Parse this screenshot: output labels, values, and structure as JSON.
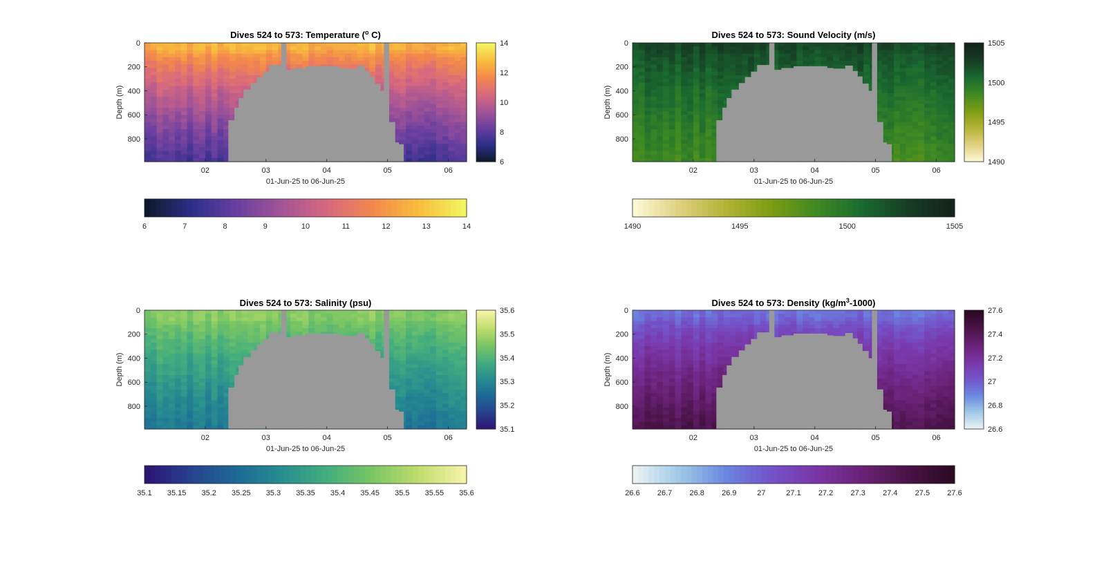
{
  "chart_data": [
    {
      "type": "heatmap",
      "title": "Dives 524 to 573: Temperature (",
      "title_super": "o",
      "title_tail": " C)",
      "xlabel": "01-Jun-25 to 06-Jun-25",
      "ylabel": "Depth (m)",
      "xticks": [
        "02",
        "03",
        "04",
        "05",
        "06"
      ],
      "yticks": [
        "0",
        "200",
        "400",
        "600",
        "800"
      ],
      "xlim": [
        1.0,
        6.3
      ],
      "ylim": [
        0,
        990
      ],
      "colormap": [
        "#0d1a2e",
        "#2e2f8a",
        "#6a3fa0",
        "#a55596",
        "#d8697e",
        "#f3884c",
        "#f8bd3c",
        "#f3f462"
      ],
      "clim": [
        6,
        14
      ],
      "colorbar_ticks_right": [
        "6",
        "8",
        "10",
        "12",
        "14"
      ],
      "colorbar_ticks_bottom": [
        "6",
        "7",
        "8",
        "9",
        "10",
        "11",
        "12",
        "13",
        "14"
      ],
      "profile": {
        "surface": 12.6,
        "mix_depth": 60,
        "deep": 7.6
      },
      "no_data_color": "#999999",
      "no_data_note": "gray region shows seafloor / no data"
    },
    {
      "type": "heatmap",
      "title": "Dives 524 to 573: Sound Velocity (m/s)",
      "xlabel": "01-Jun-25 to 06-Jun-25",
      "ylabel": "Depth (m)",
      "xticks": [
        "02",
        "03",
        "04",
        "05",
        "06"
      ],
      "yticks": [
        "0",
        "200",
        "400",
        "600",
        "800"
      ],
      "xlim": [
        1.0,
        6.3
      ],
      "ylim": [
        0,
        990
      ],
      "colormap": [
        "#fcf7d4",
        "#e0cf7e",
        "#b3b335",
        "#7c9d12",
        "#3f8a22",
        "#1a6b30",
        "#163e24",
        "#14231a"
      ],
      "clim": [
        1490,
        1505
      ],
      "colorbar_ticks_right": [
        "1490",
        "1495",
        "1500",
        "1505"
      ],
      "colorbar_ticks_bottom": [
        "1490",
        "1495",
        "1500",
        "1505"
      ],
      "profile": {
        "surface": 1502.6,
        "mix_depth": 40,
        "deep": 1498.6
      },
      "no_data_color": "#999999"
    },
    {
      "type": "heatmap",
      "title": "Dives 524 to 573: Salinity (psu)",
      "xlabel": "01-Jun-25 to 06-Jun-25",
      "ylabel": "Depth (m)",
      "xticks": [
        "02",
        "03",
        "04",
        "05",
        "06"
      ],
      "yticks": [
        "0",
        "200",
        "400",
        "600",
        "800"
      ],
      "xlim": [
        1.0,
        6.3
      ],
      "ylim": [
        0,
        990
      ],
      "colormap": [
        "#2b1673",
        "#27438f",
        "#1d6a96",
        "#278e8f",
        "#45ae7d",
        "#7bc663",
        "#c0dd6e",
        "#f6f2a8"
      ],
      "clim": [
        35.1,
        35.6
      ],
      "colorbar_ticks_right": [
        "35.1",
        "35.2",
        "35.3",
        "35.4",
        "35.5",
        "35.6"
      ],
      "colorbar_ticks_bottom": [
        "35.1",
        "35.15",
        "35.2",
        "35.25",
        "35.3",
        "35.35",
        "35.4",
        "35.45",
        "35.5",
        "35.55",
        "35.6"
      ],
      "profile": {
        "surface": 35.47,
        "mix_depth": 80,
        "deep": 35.27
      },
      "no_data_color": "#999999"
    },
    {
      "type": "heatmap",
      "title": "Dives 524 to 573: Density (kg/m",
      "title_super": "3",
      "title_tail": "-1000)",
      "xlabel": "01-Jun-25 to 06-Jun-25",
      "ylabel": "Depth (m)",
      "xticks": [
        "02",
        "03",
        "04",
        "05",
        "06"
      ],
      "yticks": [
        "0",
        "200",
        "400",
        "600",
        "800"
      ],
      "xlim": [
        1.0,
        6.3
      ],
      "ylim": [
        0,
        990
      ],
      "colormap": [
        "#e8f2f3",
        "#9ec8e6",
        "#6a86e0",
        "#7452c9",
        "#7a36a6",
        "#6a2277",
        "#4a1347",
        "#2b0a23"
      ],
      "clim": [
        26.6,
        27.6
      ],
      "colorbar_ticks_right": [
        "26.6",
        "26.8",
        "27",
        "27.2",
        "27.4",
        "27.6"
      ],
      "colorbar_ticks_bottom": [
        "26.6",
        "26.7",
        "26.8",
        "26.9",
        "27",
        "27.1",
        "27.2",
        "27.3",
        "27.4",
        "27.5",
        "27.6"
      ],
      "profile": {
        "surface": 26.95,
        "mix_depth": 60,
        "deep": 27.45
      },
      "no_data_color": "#999999"
    }
  ],
  "shared": {
    "no_data_columns": [
      {
        "x0": 1.0,
        "x1": 2.38,
        "floor": 990
      },
      {
        "x0": 2.38,
        "x1": 2.48,
        "floor": 645
      },
      {
        "x0": 2.48,
        "x1": 2.55,
        "floor": 540
      },
      {
        "x0": 2.55,
        "x1": 2.63,
        "floor": 460
      },
      {
        "x0": 2.63,
        "x1": 2.75,
        "floor": 390
      },
      {
        "x0": 2.75,
        "x1": 2.85,
        "floor": 335
      },
      {
        "x0": 2.85,
        "x1": 2.95,
        "floor": 285
      },
      {
        "x0": 2.95,
        "x1": 3.05,
        "floor": 240
      },
      {
        "x0": 3.05,
        "x1": 3.25,
        "floor": 185
      },
      {
        "x0": 3.25,
        "x1": 3.33,
        "floor": 0
      },
      {
        "x0": 3.33,
        "x1": 3.45,
        "floor": 225
      },
      {
        "x0": 3.45,
        "x1": 3.65,
        "floor": 210
      },
      {
        "x0": 3.65,
        "x1": 4.2,
        "floor": 195
      },
      {
        "x0": 4.2,
        "x1": 4.3,
        "floor": 210
      },
      {
        "x0": 4.3,
        "x1": 4.5,
        "floor": 215
      },
      {
        "x0": 4.5,
        "x1": 4.62,
        "floor": 190
      },
      {
        "x0": 4.62,
        "x1": 4.7,
        "floor": 235
      },
      {
        "x0": 4.7,
        "x1": 4.78,
        "floor": 280
      },
      {
        "x0": 4.78,
        "x1": 4.88,
        "floor": 340
      },
      {
        "x0": 4.88,
        "x1": 4.94,
        "floor": 400
      },
      {
        "x0": 4.94,
        "x1": 5.02,
        "floor": 0
      },
      {
        "x0": 5.02,
        "x1": 5.12,
        "floor": 660
      },
      {
        "x0": 5.12,
        "x1": 5.18,
        "floor": 830
      },
      {
        "x0": 5.18,
        "x1": 5.26,
        "floor": 845
      },
      {
        "x0": 5.26,
        "x1": 6.3,
        "floor": 990
      }
    ]
  }
}
